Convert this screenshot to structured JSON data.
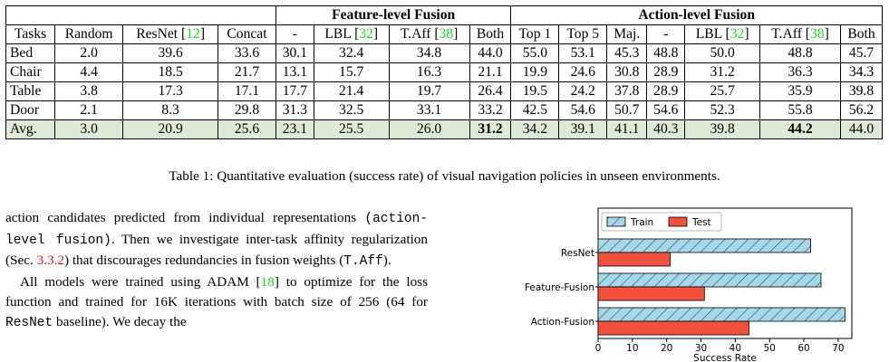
{
  "table": {
    "group_feature": "Feature-level Fusion",
    "group_action": "Action-level Fusion",
    "headers": [
      {
        "text": "Tasks"
      },
      {
        "text": "Random"
      },
      {
        "text": "ResNet [",
        "ref": "12",
        "after": "]"
      },
      {
        "text": "Concat"
      },
      {
        "text": "-"
      },
      {
        "text": "LBL [",
        "ref": "32",
        "after": "]"
      },
      {
        "text": "T.Aff [",
        "ref": "38",
        "after": "]"
      },
      {
        "text": "Both"
      },
      {
        "text": "Top 1"
      },
      {
        "text": "Top 5"
      },
      {
        "text": "Maj."
      },
      {
        "text": "-"
      },
      {
        "text": "LBL [",
        "ref": "32",
        "after": "]"
      },
      {
        "text": "T.Aff [",
        "ref": "38",
        "after": "]"
      },
      {
        "text": "Both"
      }
    ],
    "rows": [
      [
        "Bed",
        "2.0",
        "39.6",
        "33.6",
        "30.1",
        "32.4",
        "34.8",
        "44.0",
        "55.0",
        "53.1",
        "45.3",
        "48.8",
        "50.0",
        "48.8",
        "45.7"
      ],
      [
        "Chair",
        "4.4",
        "18.5",
        "21.7",
        "13.1",
        "15.7",
        "16.3",
        "21.1",
        "19.9",
        "24.6",
        "30.8",
        "28.9",
        "31.2",
        "36.3",
        "34.3"
      ],
      [
        "Table",
        "3.8",
        "17.3",
        "17.1",
        "17.7",
        "21.4",
        "19.7",
        "26.4",
        "19.5",
        "24.2",
        "37.8",
        "28.9",
        "25.7",
        "35.9",
        "39.8"
      ],
      [
        "Door",
        "2.1",
        "8.3",
        "29.8",
        "31.3",
        "32.5",
        "33.1",
        "33.2",
        "42.5",
        "54.6",
        "50.7",
        "54.6",
        "52.3",
        "55.8",
        "56.2"
      ],
      [
        "Avg.",
        "3.0",
        "20.9",
        "25.6",
        "23.1",
        "25.5",
        "26.0",
        "31.2",
        "34.2",
        "39.1",
        "41.1",
        "40.3",
        "39.8",
        "44.2",
        "44.0"
      ]
    ],
    "bold_cells": [
      [
        4,
        7
      ],
      [
        4,
        13
      ]
    ]
  },
  "caption": "Table 1: Quantitative evaluation (success rate) of visual navigation policies in unseen environments.",
  "text": {
    "p1_a": "action candidates predicted from individual representations",
    "p1_mono1": "(action-level fusion)",
    "p1_b": ". Then we investigate inter-task affinity regularization (Sec. ",
    "p1_sec": "3.3.2",
    "p1_c": ") that discourages redundancies in fusion weights (",
    "p1_mono2": "T.Aff",
    "p1_d": ").",
    "p2_a": "All models were trained using ADAM [",
    "p2_ref": "18",
    "p2_b": "] to optimize for the loss function and trained for 16K iterations with batch size of 256 (64 for ",
    "p2_mono": "ResNet",
    "p2_c": " baseline). We decay the"
  },
  "chart_data": {
    "type": "bar",
    "orientation": "horizontal",
    "categories": [
      "ResNet",
      "Feature-Fusion",
      "Action-Fusion"
    ],
    "series": [
      {
        "name": "Train",
        "values": [
          62,
          65,
          72
        ],
        "color": "#a8d8e8",
        "hatch": true
      },
      {
        "name": "Test",
        "values": [
          21,
          31,
          44
        ],
        "color": "#f0503c"
      }
    ],
    "xlabel": "Success Rate",
    "xticks": [
      0,
      10,
      20,
      30,
      40,
      50,
      60,
      70
    ],
    "xlim": [
      0,
      74
    ],
    "legend": "top-left"
  }
}
